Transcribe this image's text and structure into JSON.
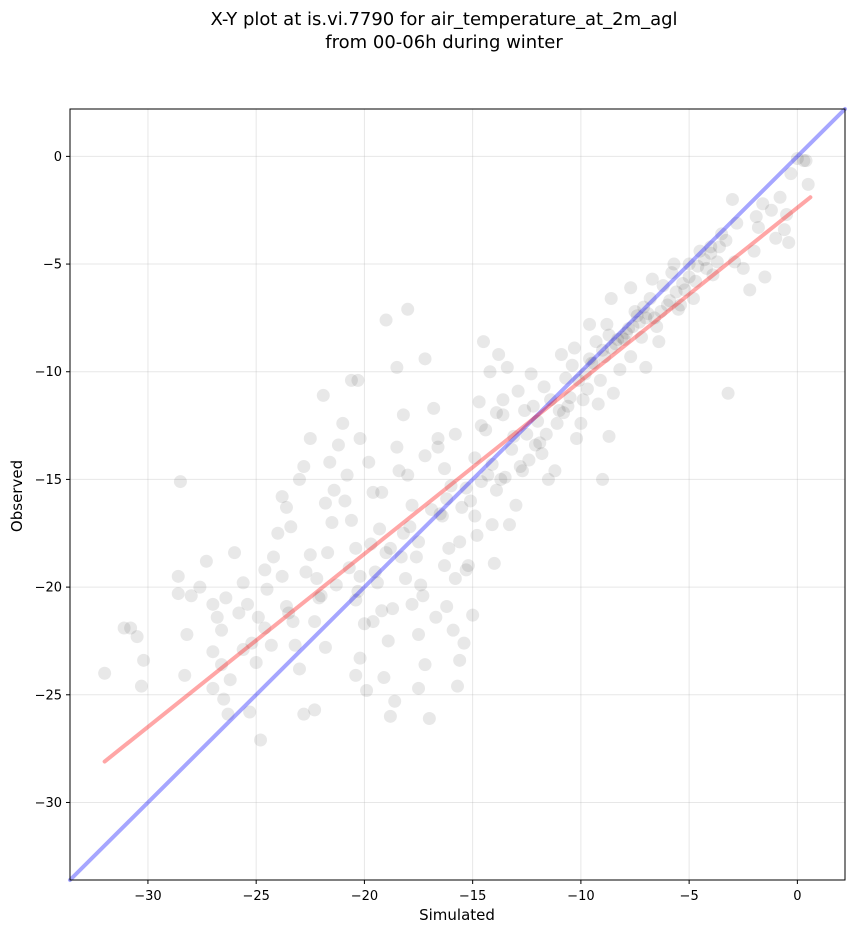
{
  "chart_data": {
    "type": "scatter",
    "title_lines": [
      "X-Y plot at is.vi.7790 for air_temperature_at_2m_agl",
      "from 00-06h during winter"
    ],
    "xlabel": "Simulated",
    "ylabel": "Observed",
    "xlim": [
      -33.6,
      2.2
    ],
    "ylim": [
      -33.6,
      2.2
    ],
    "xticks": [
      -30,
      -25,
      -20,
      -15,
      -10,
      -5,
      0
    ],
    "yticks": [
      0,
      -5,
      -10,
      -15,
      -20,
      -25,
      -30
    ],
    "grid": true,
    "point_color": "#000000",
    "point_opacity": 0.09,
    "identity_line": {
      "color": "#0000ff",
      "opacity": 0.35,
      "x": [
        -33.6,
        2.2
      ],
      "y": [
        -33.6,
        2.2
      ]
    },
    "fit_line": {
      "color": "#ff0000",
      "opacity": 0.35,
      "x": [
        -32,
        0.6
      ],
      "y": [
        -28.1,
        -1.9
      ]
    },
    "series": [
      {
        "points": [
          [
            -32,
            -24
          ],
          [
            -31.1,
            -21.9
          ],
          [
            -30.8,
            -21.9
          ],
          [
            -30.5,
            -22.3
          ],
          [
            -30.2,
            -23.4
          ],
          [
            -30.3,
            -24.6
          ],
          [
            -28.5,
            -15.1
          ],
          [
            -28.6,
            -19.5
          ],
          [
            -28.6,
            -20.3
          ],
          [
            -28.2,
            -22.2
          ],
          [
            -28.3,
            -24.1
          ],
          [
            -28.0,
            -20.4
          ],
          [
            -27.6,
            -20.0
          ],
          [
            -27.3,
            -18.8
          ],
          [
            -27.0,
            -20.8
          ],
          [
            -26.8,
            -21.4
          ],
          [
            -26.6,
            -22.0
          ],
          [
            -26.4,
            -20.5
          ],
          [
            -27.0,
            -23.0
          ],
          [
            -26.6,
            -23.6
          ],
          [
            -27.0,
            -24.7
          ],
          [
            -26.2,
            -24.3
          ],
          [
            -26.5,
            -25.2
          ],
          [
            -26.3,
            -25.9
          ],
          [
            -26.0,
            -18.4
          ],
          [
            -25.6,
            -19.8
          ],
          [
            -25.8,
            -21.2
          ],
          [
            -25.4,
            -20.8
          ],
          [
            -25.2,
            -22.6
          ],
          [
            -25.0,
            -23.5
          ],
          [
            -25.3,
            -25.8
          ],
          [
            -24.8,
            -27.1
          ],
          [
            -24.5,
            -20.1
          ],
          [
            -24.6,
            -19.2
          ],
          [
            -24.2,
            -18.6
          ],
          [
            -24.0,
            -17.5
          ],
          [
            -23.8,
            -15.8
          ],
          [
            -23.6,
            -16.3
          ],
          [
            -23.4,
            -17.2
          ],
          [
            -23.0,
            -15.0
          ],
          [
            -22.8,
            -14.4
          ],
          [
            -22.5,
            -13.1
          ],
          [
            -23.8,
            -19.5
          ],
          [
            -23.5,
            -21.2
          ],
          [
            -23.2,
            -22.7
          ],
          [
            -23.0,
            -23.8
          ],
          [
            -22.8,
            -25.9
          ],
          [
            -22.3,
            -25.7
          ],
          [
            -22.5,
            -18.5
          ],
          [
            -22.2,
            -19.6
          ],
          [
            -22.0,
            -20.4
          ],
          [
            -22.3,
            -21.6
          ],
          [
            -21.8,
            -22.8
          ],
          [
            -21.5,
            -17.0
          ],
          [
            -21.8,
            -16.1
          ],
          [
            -21.6,
            -14.2
          ],
          [
            -21.4,
            -15.5
          ],
          [
            -21.2,
            -13.4
          ],
          [
            -21.0,
            -12.4
          ],
          [
            -21.9,
            -11.1
          ],
          [
            -20.8,
            -14.8
          ],
          [
            -20.6,
            -16.9
          ],
          [
            -20.4,
            -18.2
          ],
          [
            -20.2,
            -19.5
          ],
          [
            -20.4,
            -20.6
          ],
          [
            -20.0,
            -21.7
          ],
          [
            -20.2,
            -23.3
          ],
          [
            -20.4,
            -24.1
          ],
          [
            -19.9,
            -24.8
          ],
          [
            -20.6,
            -10.4
          ],
          [
            -20.3,
            -10.4
          ],
          [
            -20.2,
            -13.1
          ],
          [
            -19.8,
            -14.2
          ],
          [
            -19.6,
            -15.6
          ],
          [
            -19.3,
            -17.3
          ],
          [
            -19.0,
            -18.4
          ],
          [
            -19.4,
            -19.8
          ],
          [
            -19.2,
            -21.1
          ],
          [
            -18.9,
            -22.5
          ],
          [
            -19.1,
            -24.2
          ],
          [
            -18.6,
            -25.3
          ],
          [
            -18.8,
            -26.0
          ],
          [
            -19.0,
            -7.6
          ],
          [
            -18.0,
            -7.1
          ],
          [
            -18.5,
            -9.8
          ],
          [
            -18.2,
            -12.0
          ],
          [
            -18.5,
            -13.5
          ],
          [
            -18.0,
            -14.8
          ],
          [
            -17.8,
            -16.2
          ],
          [
            -18.2,
            -17.5
          ],
          [
            -17.6,
            -18.6
          ],
          [
            -17.4,
            -19.9
          ],
          [
            -17.8,
            -20.8
          ],
          [
            -17.5,
            -22.2
          ],
          [
            -17.2,
            -23.6
          ],
          [
            -17.5,
            -24.7
          ],
          [
            -17.0,
            -26.1
          ],
          [
            -17.2,
            -9.4
          ],
          [
            -16.8,
            -11.7
          ],
          [
            -16.6,
            -13.1
          ],
          [
            -16.3,
            -14.5
          ],
          [
            -16.0,
            -15.3
          ],
          [
            -16.4,
            -16.7
          ],
          [
            -16.1,
            -18.2
          ],
          [
            -15.8,
            -19.6
          ],
          [
            -16.2,
            -20.9
          ],
          [
            -15.9,
            -22.0
          ],
          [
            -15.6,
            -23.4
          ],
          [
            -15.7,
            -24.6
          ],
          [
            -15.4,
            -22.6
          ],
          [
            -15.0,
            -21.3
          ],
          [
            -15.2,
            -19.0
          ],
          [
            -14.8,
            -17.6
          ],
          [
            -15.1,
            -16.0
          ],
          [
            -14.6,
            -15.1
          ],
          [
            -14.9,
            -14.0
          ],
          [
            -14.4,
            -12.7
          ],
          [
            -14.7,
            -11.4
          ],
          [
            -14.2,
            -10.0
          ],
          [
            -14.5,
            -8.6
          ],
          [
            -13.8,
            -9.2
          ],
          [
            -13.4,
            -9.8
          ],
          [
            -13.6,
            -12.0
          ],
          [
            -13.2,
            -13.6
          ],
          [
            -13.9,
            -15.5
          ],
          [
            -13.0,
            -16.2
          ],
          [
            -13.3,
            -17.1
          ],
          [
            -14.0,
            -18.9
          ],
          [
            -12.8,
            -14.4
          ],
          [
            -12.5,
            -12.9
          ],
          [
            -12.2,
            -11.6
          ],
          [
            -12.0,
            -12.3
          ],
          [
            -11.8,
            -13.8
          ],
          [
            -11.5,
            -15.0
          ],
          [
            -11.2,
            -14.6
          ],
          [
            -11.0,
            -11.8
          ],
          [
            -10.7,
            -10.3
          ],
          [
            -10.5,
            -11.2
          ],
          [
            -10.2,
            -13.1
          ],
          [
            -10.0,
            -12.4
          ],
          [
            -9.7,
            -10.8
          ],
          [
            -9.5,
            -9.6
          ],
          [
            -9.2,
            -11.5
          ],
          [
            -9.0,
            -15.0
          ],
          [
            -8.7,
            -13.0
          ],
          [
            -8.5,
            -11.0
          ],
          [
            -8.2,
            -9.9
          ],
          [
            -8.0,
            -8.5
          ],
          [
            -7.7,
            -9.3
          ],
          [
            -7.5,
            -7.2
          ],
          [
            -7.2,
            -8.4
          ],
          [
            -7.0,
            -7.5
          ],
          [
            -6.8,
            -6.6
          ],
          [
            -6.5,
            -7.9
          ],
          [
            -6.2,
            -6.0
          ],
          [
            -6.0,
            -6.9
          ],
          [
            -5.8,
            -5.4
          ],
          [
            -5.5,
            -7.1
          ],
          [
            -5.2,
            -6.2
          ],
          [
            -5.0,
            -5.0
          ],
          [
            -4.7,
            -5.8
          ],
          [
            -4.5,
            -4.4
          ],
          [
            -4.2,
            -5.2
          ],
          [
            -4.0,
            -4.2
          ],
          [
            -3.7,
            -4.9
          ],
          [
            -3.5,
            -3.6
          ],
          [
            -3.2,
            -11.0
          ],
          [
            -3.0,
            -2.0
          ],
          [
            -2.8,
            -3.1
          ],
          [
            -2.5,
            -5.2
          ],
          [
            -2.2,
            -6.2
          ],
          [
            -2.0,
            -4.4
          ],
          [
            -1.8,
            -3.3
          ],
          [
            -1.5,
            -5.6
          ],
          [
            -1.2,
            -2.5
          ],
          [
            -1.0,
            -3.8
          ],
          [
            -0.8,
            -1.9
          ],
          [
            -0.5,
            -2.7
          ],
          [
            -0.3,
            -0.8
          ],
          [
            0.0,
            -0.1
          ],
          [
            0.3,
            -0.2
          ],
          [
            0.4,
            -0.2
          ],
          [
            0.5,
            -1.3
          ],
          [
            -0.4,
            -4.0
          ],
          [
            -0.6,
            -3.4
          ],
          [
            -7.0,
            -9.8
          ],
          [
            -8.8,
            -7.8
          ],
          [
            -9.3,
            -8.6
          ],
          [
            -10.4,
            -9.7
          ],
          [
            -11.4,
            -11.3
          ],
          [
            -12.6,
            -11.8
          ],
          [
            -13.1,
            -13.0
          ],
          [
            -14.1,
            -14.3
          ],
          [
            -15.3,
            -15.4
          ],
          [
            -16.5,
            -16.6
          ],
          [
            -17.5,
            -17.9
          ],
          [
            -18.3,
            -18.6
          ],
          [
            -19.5,
            -19.3
          ],
          [
            -20.3,
            -20.2
          ],
          [
            -6.3,
            -7.2
          ],
          [
            -6.6,
            -7.5
          ],
          [
            -6.9,
            -7.3
          ],
          [
            -7.3,
            -7.7
          ],
          [
            -7.6,
            -7.9
          ],
          [
            -7.9,
            -8.2
          ],
          [
            -8.3,
            -8.5
          ],
          [
            -8.6,
            -8.9
          ],
          [
            -8.9,
            -9.3
          ],
          [
            -9.4,
            -9.6
          ],
          [
            -9.8,
            -10.1
          ],
          [
            -10.1,
            -10.4
          ],
          [
            -5.9,
            -6.7
          ],
          [
            -5.6,
            -6.3
          ],
          [
            -5.3,
            -5.9
          ],
          [
            -5.0,
            -5.6
          ],
          [
            -4.6,
            -5.1
          ],
          [
            -4.3,
            -4.8
          ],
          [
            -4.0,
            -4.5
          ],
          [
            -3.6,
            -4.2
          ],
          [
            -3.3,
            -3.9
          ],
          [
            -7.1,
            -7.0
          ],
          [
            -7.4,
            -7.4
          ],
          [
            -7.8,
            -8.0
          ],
          [
            -8.1,
            -8.4
          ],
          [
            -8.4,
            -8.7
          ],
          [
            -8.7,
            -8.3
          ],
          [
            -9.0,
            -9.0
          ],
          [
            -9.6,
            -9.4
          ],
          [
            -10.6,
            -11.6
          ],
          [
            -11.1,
            -12.4
          ],
          [
            -11.6,
            -12.9
          ],
          [
            -12.1,
            -13.4
          ],
          [
            -12.4,
            -14.1
          ],
          [
            -13.7,
            -15.0
          ],
          [
            -14.3,
            -14.8
          ],
          [
            -15.5,
            -16.3
          ],
          [
            -16.2,
            -15.9
          ],
          [
            -16.9,
            -16.4
          ],
          [
            -17.9,
            -17.2
          ],
          [
            -18.8,
            -18.2
          ],
          [
            -19.7,
            -18.0
          ],
          [
            -20.7,
            -19.1
          ],
          [
            -21.3,
            -19.9
          ],
          [
            -22.1,
            -20.5
          ],
          [
            -23.3,
            -21.6
          ],
          [
            -24.3,
            -22.7
          ],
          [
            -24.6,
            -21.9
          ],
          [
            -25.6,
            -22.9
          ],
          [
            -16.7,
            -21.4
          ],
          [
            -15.3,
            -19.2
          ],
          [
            -14.1,
            -17.1
          ],
          [
            -13.5,
            -14.9
          ],
          [
            -12.7,
            -14.6
          ],
          [
            -11.9,
            -13.3
          ],
          [
            -10.8,
            -11.9
          ],
          [
            -9.9,
            -11.3
          ],
          [
            -9.1,
            -10.4
          ],
          [
            -6.4,
            -8.6
          ],
          [
            -5.4,
            -6.9
          ],
          [
            -4.8,
            -6.6
          ],
          [
            -3.9,
            -5.5
          ],
          [
            -2.9,
            -4.9
          ],
          [
            -1.9,
            -2.8
          ],
          [
            -1.6,
            -2.2
          ],
          [
            -18.1,
            -19.6
          ],
          [
            -18.7,
            -21.0
          ],
          [
            -19.6,
            -21.6
          ],
          [
            -17.3,
            -20.4
          ],
          [
            -16.3,
            -19.0
          ],
          [
            -15.6,
            -17.9
          ],
          [
            -14.9,
            -16.7
          ],
          [
            -13.6,
            -11.3
          ],
          [
            -12.9,
            -10.9
          ],
          [
            -12.3,
            -10.1
          ],
          [
            -11.7,
            -10.7
          ],
          [
            -10.9,
            -9.2
          ],
          [
            -10.3,
            -8.9
          ],
          [
            -9.6,
            -7.8
          ],
          [
            -8.6,
            -6.6
          ],
          [
            -7.7,
            -6.1
          ],
          [
            -6.7,
            -5.7
          ],
          [
            -5.7,
            -5.0
          ],
          [
            -21.7,
            -18.4
          ],
          [
            -22.7,
            -19.3
          ],
          [
            -23.6,
            -20.9
          ],
          [
            -24.9,
            -21.4
          ],
          [
            -20.9,
            -16.0
          ],
          [
            -19.2,
            -15.6
          ],
          [
            -18.4,
            -14.6
          ],
          [
            -17.2,
            -13.9
          ],
          [
            -16.6,
            -13.5
          ],
          [
            -15.8,
            -12.9
          ],
          [
            -14.6,
            -12.5
          ],
          [
            -13.9,
            -11.9
          ]
        ]
      }
    ]
  }
}
